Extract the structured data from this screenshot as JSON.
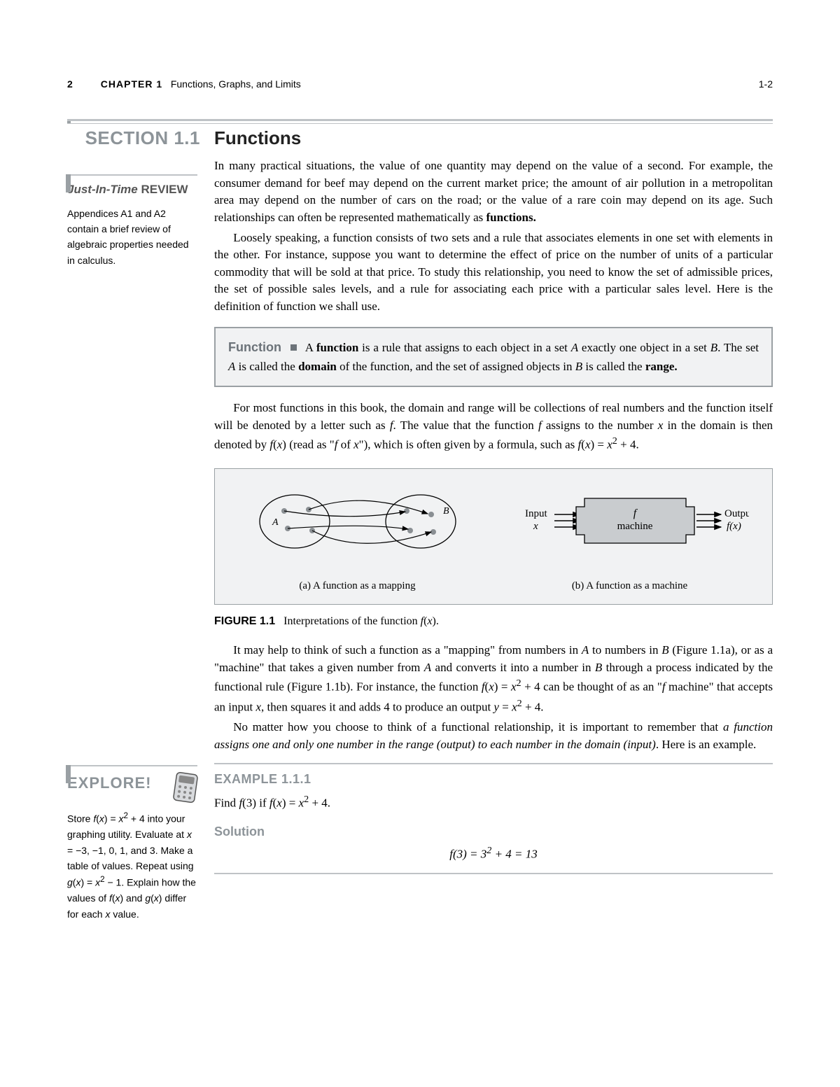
{
  "header": {
    "page_number": "2",
    "chapter_label": "CHAPTER 1",
    "chapter_title": "Functions, Graphs, and Limits",
    "page_ref": "1-2"
  },
  "section": {
    "label": "SECTION 1.1",
    "title": "Functions"
  },
  "sidebar": {
    "review_heading_ital": "Just-In-Time",
    "review_heading_bold": "REVIEW",
    "review_text": "Appendices A1 and A2 contain a brief review of algebraic properties needed in calculus.",
    "explore_heading": "EXPLORE!",
    "explore_text_html": "Store <i>f</i>(<i>x</i>) = <i>x</i><sup>2</sup> + 4 into your graphing utility. Evaluate at <i>x</i> = −3, −1, 0, 1, and 3. Make a table of values. Repeat using <i>g</i>(<i>x</i>) = <i>x</i><sup>2</sup> − 1. Explain how the values of <i>f</i>(<i>x</i>) and <i>g</i>(<i>x</i>) differ for each <i>x</i> value."
  },
  "body": {
    "para1": "In many practical situations, the value of one quantity may depend on the value of a second. For example, the consumer demand for beef may depend on the current market price; the amount of air pollution in a metropolitan area may depend on the number of cars on the road; or the value of a rare coin may depend on its age. Such relationships can often be represented mathematically as <b>functions.</b>",
    "para2": "Loosely speaking, a function consists of two sets and a rule that associates elements in one set with elements in the other. For instance, suppose you want to determine the effect of price on the number of units of a particular commodity that will be sold at that price. To study this relationship, you need to know the set of admissible prices, the set of possible sales levels, and a rule for associating each price with a particular sales level. Here is the definition of function we shall use.",
    "def_term": "Function",
    "def_body": "A <b>function</b> is a rule that assigns to each object in a set <i>A</i> exactly one object in a set <i>B</i>. The set <i>A</i> is called the <b>domain</b> of the function, and the set of assigned objects in <i>B</i> is called the <b>range.</b>",
    "para3": "For most functions in this book, the domain and range will be collections of real numbers and the function itself will be denoted by a letter such as <i>f</i>. The value that the function <i>f</i> assigns to the number <i>x</i> in the domain is then denoted by <i>f</i>(<i>x</i>) (read as \"<i>f</i> of <i>x</i>\"), which is often given by a formula, such as <i>f</i>(<i>x</i>) = <i>x</i><sup>2</sup> + 4.",
    "fig_a_caption": "(a) A function as a mapping",
    "fig_b_caption": "(b) A function as a machine",
    "fig_b_input_label": "Input",
    "fig_b_input_var": "x",
    "fig_b_machine_top": "f",
    "fig_b_machine_bottom": "machine",
    "fig_b_output_label": "Output",
    "fig_b_output_var": "f(x)",
    "fig_title_label": "FIGURE 1.1",
    "fig_title_text": "Interpretations of the function <i>f</i>(<i>x</i>).",
    "para4": "It may help to think of such a function as a \"mapping\" from numbers in <i>A</i> to numbers in <i>B</i> (Figure 1.1a), or as a \"machine\" that takes a given number from <i>A</i> and converts it into a number in <i>B</i> through a process indicated by the functional rule (Figure 1.1b). For instance, the function <i>f</i>(<i>x</i>) = <i>x</i><sup>2</sup> + 4 can be thought of as an \"<i>f</i> machine\" that accepts an input <i>x</i>, then squares it and adds 4 to produce an output <i>y</i> = <i>x</i><sup>2</sup> + 4.",
    "para5": "No matter how you choose to think of a functional relationship, it is important to remember that <i>a function assigns one and only one number in the range (output) to each number in the domain (input)</i>. Here is an example.",
    "example_label": "EXAMPLE 1.1.1",
    "example_prompt": "Find <i>f</i>(3) if <i>f</i>(<i>x</i>) = <i>x</i><sup>2</sup> + 4.",
    "solution_label": "Solution",
    "solution_eqn": "<i>f</i>(3) = 3<sup>2</sup> + 4 = 13"
  },
  "colors": {
    "gray_strong": "#9aa0a4",
    "gray_text": "#8d9499",
    "bg_box": "#f1f2f3"
  }
}
